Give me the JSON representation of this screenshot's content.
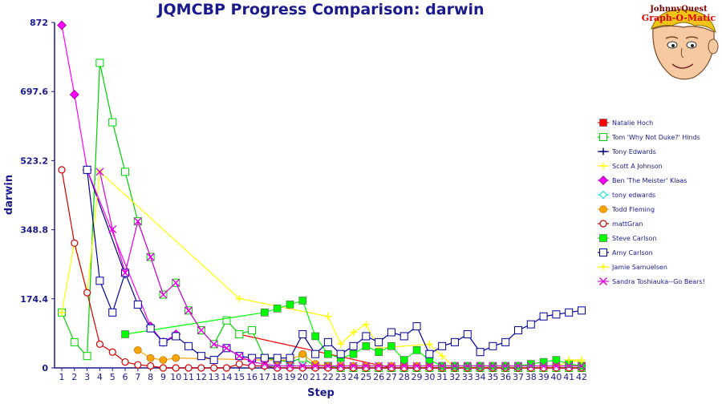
{
  "chart_data": {
    "type": "line",
    "title": "JQMCBP Progress Comparison: darwin",
    "xlabel": "Step",
    "ylabel": "darwin",
    "ylim": [
      0,
      872
    ],
    "yticks": [
      0,
      174.4,
      348.8,
      523.2,
      697.6,
      872
    ],
    "ytick_labels": [
      "0",
      "174.4",
      "348.8",
      "523.2",
      "697.6",
      "872"
    ],
    "x": [
      1,
      2,
      3,
      4,
      5,
      6,
      7,
      8,
      9,
      10,
      11,
      12,
      13,
      14,
      15,
      16,
      17,
      18,
      19,
      20,
      21,
      22,
      23,
      24,
      25,
      26,
      27,
      28,
      29,
      30,
      31,
      32,
      33,
      34,
      35,
      36,
      37,
      38,
      39,
      40,
      41,
      42
    ],
    "legend_position": "right",
    "grid": false,
    "series": [
      {
        "name": "Natalie Hoch",
        "color": "#ff0000",
        "marker": "square-filled",
        "values": [
          null,
          null,
          null,
          null,
          null,
          null,
          null,
          null,
          null,
          null,
          null,
          null,
          null,
          null,
          85,
          null,
          null,
          null,
          null,
          null,
          null,
          null,
          null,
          null,
          null,
          null,
          0,
          0,
          0,
          0,
          0,
          0,
          0,
          0,
          0,
          0,
          0,
          0,
          0,
          0,
          0,
          0
        ]
      },
      {
        "name": "Tom 'Why Not Duke?' Hinds",
        "color": "#00d000",
        "marker": "square-open",
        "values": [
          140,
          65,
          30,
          770,
          620,
          495,
          370,
          280,
          185,
          215,
          145,
          95,
          60,
          120,
          85,
          95,
          25,
          20,
          15,
          25,
          5,
          5,
          0,
          0,
          0,
          0,
          0,
          0,
          0,
          0,
          0,
          0,
          0,
          0,
          0,
          0,
          0,
          0,
          0,
          0,
          0,
          0
        ]
      },
      {
        "name": "Tony Edwards",
        "color": "#000080",
        "marker": "plus",
        "values": [
          null,
          null,
          500,
          null,
          null,
          235,
          null,
          null,
          null,
          null,
          null,
          null,
          null,
          null,
          null,
          null,
          null,
          null,
          null,
          null,
          null,
          null,
          null,
          null,
          null,
          null,
          null,
          null,
          null,
          null,
          null,
          null,
          null,
          null,
          null,
          null,
          null,
          null,
          null,
          null,
          null,
          null
        ]
      },
      {
        "name": "Scott A Johnson",
        "color": "#ffff00",
        "marker": "plus",
        "values": [
          140,
          315,
          190,
          495,
          null,
          null,
          null,
          null,
          null,
          null,
          null,
          null,
          null,
          null,
          175,
          null,
          null,
          null,
          null,
          null,
          null,
          130,
          60,
          90,
          110,
          50,
          null,
          null,
          null,
          60,
          30,
          0,
          0,
          0,
          0,
          0,
          0,
          0,
          0,
          0,
          20,
          15
        ]
      },
      {
        "name": "Ben 'The Meister' Klaas",
        "color": "#ff00ff",
        "marker": "diamond",
        "values": [
          865,
          690,
          500,
          null,
          null,
          null,
          null,
          105,
          65,
          85,
          null,
          null,
          null,
          null,
          null,
          null,
          null,
          null,
          null,
          null,
          null,
          null,
          null,
          null,
          null,
          null,
          null,
          null,
          null,
          null,
          null,
          null,
          null,
          null,
          null,
          null,
          null,
          null,
          null,
          null,
          null,
          null
        ]
      },
      {
        "name": "tony edwards",
        "color": "#00e0e0",
        "marker": "diamond-open",
        "values": [
          null,
          null,
          null,
          null,
          null,
          null,
          null,
          null,
          null,
          null,
          null,
          null,
          null,
          null,
          null,
          5,
          5,
          5,
          5,
          5,
          5,
          5,
          5,
          5,
          5,
          5,
          5,
          5,
          5,
          5,
          5,
          5,
          5,
          5,
          5,
          5,
          5,
          5,
          5,
          5,
          5,
          5
        ]
      },
      {
        "name": "Todd Fleming",
        "color": "#ffa500",
        "marker": "circle-filled",
        "values": [
          null,
          null,
          null,
          null,
          null,
          null,
          45,
          25,
          20,
          25,
          null,
          null,
          null,
          null,
          null,
          null,
          20,
          20,
          20,
          35,
          10,
          5,
          5,
          5,
          5,
          5,
          5,
          5,
          5,
          5,
          5,
          5,
          5,
          5,
          5,
          5,
          5,
          5,
          5,
          5,
          5,
          5
        ]
      },
      {
        "name": "mattGran",
        "color": "#d00000",
        "marker": "circle-open",
        "values": [
          500,
          315,
          190,
          60,
          40,
          15,
          8,
          5,
          0,
          0,
          0,
          0,
          0,
          0,
          10,
          5,
          5,
          0,
          0,
          0,
          0,
          0,
          0,
          0,
          0,
          0,
          0,
          0,
          0,
          0,
          0,
          0,
          0,
          0,
          0,
          0,
          0,
          0,
          0,
          0,
          0,
          0
        ]
      },
      {
        "name": "Steve Carlson",
        "color": "#00ff00",
        "marker": "square-filled",
        "values": [
          null,
          null,
          null,
          null,
          null,
          85,
          null,
          null,
          null,
          null,
          null,
          null,
          null,
          null,
          null,
          null,
          140,
          150,
          160,
          170,
          80,
          35,
          25,
          35,
          55,
          40,
          55,
          20,
          45,
          20,
          5,
          5,
          5,
          5,
          5,
          5,
          5,
          10,
          15,
          20,
          10,
          5
        ]
      },
      {
        "name": "Amy Carlson",
        "color": "#0000a0",
        "marker": "square-open",
        "values": [
          null,
          null,
          500,
          220,
          140,
          240,
          160,
          100,
          65,
          80,
          55,
          30,
          20,
          50,
          30,
          25,
          25,
          25,
          25,
          85,
          35,
          65,
          35,
          55,
          80,
          65,
          90,
          80,
          105,
          35,
          55,
          65,
          85,
          40,
          55,
          65,
          95,
          110,
          130,
          135,
          140,
          145
        ]
      },
      {
        "name": "Jamie Samuelsen",
        "color": "#ffff00",
        "marker": "plus",
        "values": [
          null,
          null,
          null,
          null,
          null,
          null,
          null,
          null,
          null,
          null,
          null,
          null,
          null,
          null,
          null,
          null,
          null,
          null,
          null,
          null,
          null,
          null,
          null,
          null,
          null,
          null,
          null,
          null,
          null,
          null,
          null,
          null,
          null,
          null,
          null,
          null,
          null,
          null,
          null,
          null,
          20,
          20
        ]
      },
      {
        "name": "Sandra Toshiauka--Go Bears!",
        "color": "#e000e0",
        "marker": "x",
        "values": [
          null,
          null,
          null,
          495,
          350,
          240,
          370,
          280,
          185,
          215,
          145,
          95,
          60,
          50,
          30,
          15,
          10,
          5,
          5,
          5,
          5,
          5,
          5,
          5,
          5,
          5,
          5,
          5,
          5,
          5,
          5,
          5,
          5,
          5,
          5,
          5,
          5,
          5,
          5,
          5,
          5,
          5
        ]
      }
    ]
  },
  "logo": {
    "line1": "JohnnyQuest",
    "line2": "Graph-O-Matic"
  }
}
